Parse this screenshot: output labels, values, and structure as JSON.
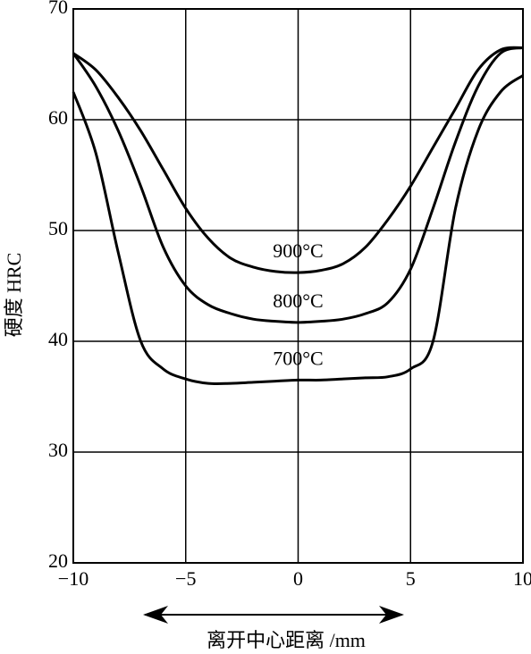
{
  "chart_data": {
    "type": "line",
    "x": [
      -10,
      -9,
      -8,
      -7,
      -6,
      -5,
      -4,
      -3,
      -2,
      -1,
      0,
      1,
      2,
      3,
      4,
      5,
      6,
      7,
      8,
      9,
      10
    ],
    "series": [
      {
        "name": "900°C",
        "color": "#000000",
        "values": [
          66,
          64.5,
          62,
          59,
          55.5,
          52,
          49.3,
          47.5,
          46.7,
          46.3,
          46.2,
          46.4,
          47,
          48.5,
          51,
          54,
          57.5,
          61,
          64.5,
          66.3,
          66.5
        ]
      },
      {
        "name": "800°C",
        "color": "#000000",
        "values": [
          66,
          63,
          59,
          54,
          48.5,
          45,
          43.3,
          42.5,
          42,
          41.8,
          41.7,
          41.8,
          42,
          42.5,
          43.5,
          46.5,
          52,
          58,
          63,
          66,
          66.5
        ]
      },
      {
        "name": "700°C",
        "color": "#000000",
        "values": [
          62.5,
          57,
          48,
          40,
          37.5,
          36.6,
          36.2,
          36.2,
          36.3,
          36.4,
          36.5,
          36.5,
          36.6,
          36.7,
          36.8,
          37.5,
          40,
          52,
          59,
          62.5,
          64
        ]
      }
    ],
    "xlabel": "离开中心距离 /mm",
    "ylabel": "硬度 HRC",
    "xlim": [
      -10,
      10
    ],
    "xticks": [
      {
        "value": -10,
        "label": "−10"
      },
      {
        "value": -5,
        "label": "−5"
      },
      0,
      5,
      10
    ],
    "ylim": [
      20,
      70
    ],
    "yticks": [
      20,
      30,
      40,
      50,
      60,
      70
    ],
    "grid": true
  }
}
